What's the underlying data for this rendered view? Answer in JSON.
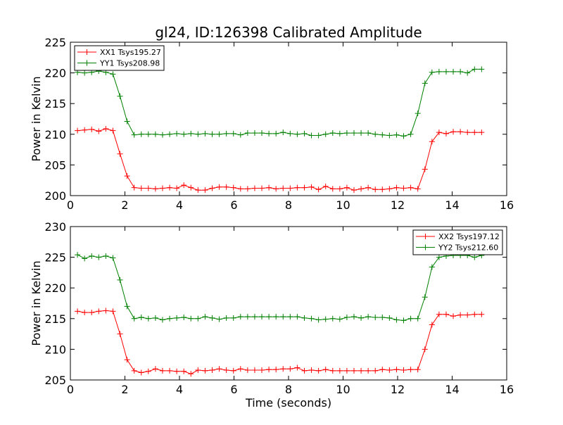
{
  "title": "gl24, ID:126398 Calibrated Amplitude",
  "colors": {
    "red": "#ff0000",
    "green": "#008000"
  },
  "chart_data": [
    {
      "type": "line",
      "title": "gl24, ID:126398 Calibrated Amplitude",
      "xlabel": "",
      "ylabel": "Power in Kelvin",
      "xlim": [
        0,
        16
      ],
      "ylim": [
        200,
        225
      ],
      "xticks": [
        "0",
        "2",
        "4",
        "6",
        "8",
        "10",
        "12",
        "14",
        "16"
      ],
      "yticks": [
        "200",
        "205",
        "210",
        "215",
        "220",
        "225"
      ],
      "legend_position": "top-left",
      "grid": false,
      "series": [
        {
          "name": "XX1 Tsys195.27",
          "color": "#ff0000",
          "x": [
            0.26,
            0.52,
            0.78,
            1.04,
            1.3,
            1.56,
            1.82,
            2.08,
            2.34,
            2.6,
            2.86,
            3.12,
            3.38,
            3.64,
            3.9,
            4.16,
            4.42,
            4.68,
            4.94,
            5.2,
            5.46,
            5.72,
            5.98,
            6.24,
            6.5,
            6.76,
            7.02,
            7.28,
            7.54,
            7.8,
            8.06,
            8.32,
            8.58,
            8.84,
            9.1,
            9.36,
            9.62,
            9.88,
            10.14,
            10.4,
            10.66,
            10.92,
            11.18,
            11.44,
            11.7,
            11.96,
            12.22,
            12.48,
            12.74,
            13.0,
            13.26,
            13.52,
            13.78,
            14.04,
            14.3,
            14.56,
            14.82,
            15.08
          ],
          "y": [
            210.6,
            210.7,
            210.8,
            210.5,
            210.9,
            210.6,
            206.8,
            203.2,
            201.3,
            201.2,
            201.2,
            201.1,
            201.2,
            201.3,
            201.2,
            201.7,
            201.3,
            200.9,
            200.9,
            201.2,
            201.4,
            201.4,
            201.3,
            201.1,
            201.1,
            201.2,
            201.2,
            201.3,
            201.1,
            201.2,
            201.2,
            201.3,
            201.3,
            201.4,
            201.0,
            201.5,
            201.1,
            201.1,
            201.3,
            200.9,
            201.1,
            201.3,
            201.0,
            201.0,
            201.1,
            201.3,
            201.2,
            201.3,
            201.1,
            204.3,
            208.8,
            210.3,
            210.1,
            210.4,
            210.4,
            210.3,
            210.3,
            210.3
          ]
        },
        {
          "name": "YY1 Tsys208.98",
          "color": "#008000",
          "x": [
            0.26,
            0.52,
            0.78,
            1.04,
            1.3,
            1.56,
            1.82,
            2.08,
            2.34,
            2.6,
            2.86,
            3.12,
            3.38,
            3.64,
            3.9,
            4.16,
            4.42,
            4.68,
            4.94,
            5.2,
            5.46,
            5.72,
            5.98,
            6.24,
            6.5,
            6.76,
            7.02,
            7.28,
            7.54,
            7.8,
            8.06,
            8.32,
            8.58,
            8.84,
            9.1,
            9.36,
            9.62,
            9.88,
            10.14,
            10.4,
            10.66,
            10.92,
            11.18,
            11.44,
            11.7,
            11.96,
            12.22,
            12.48,
            12.74,
            13.0,
            13.26,
            13.52,
            13.78,
            14.04,
            14.3,
            14.56,
            14.82,
            15.08
          ],
          "y": [
            220.1,
            220.0,
            220.1,
            220.3,
            220.1,
            219.8,
            216.2,
            212.1,
            209.9,
            210.0,
            210.0,
            210.0,
            209.9,
            210.0,
            210.1,
            210.0,
            210.1,
            210.0,
            210.1,
            210.0,
            210.0,
            210.1,
            210.1,
            209.9,
            210.2,
            210.2,
            210.2,
            210.1,
            210.1,
            210.3,
            210.1,
            210.0,
            210.1,
            209.8,
            209.8,
            210.0,
            210.2,
            210.1,
            210.2,
            210.2,
            210.2,
            210.2,
            210.0,
            209.9,
            209.8,
            209.9,
            209.7,
            210.0,
            213.4,
            218.3,
            220.1,
            220.2,
            220.2,
            220.2,
            220.2,
            220.0,
            220.6,
            220.6
          ]
        }
      ]
    },
    {
      "type": "line",
      "title": "",
      "xlabel": "Time (seconds)",
      "ylabel": "Power in Kelvin",
      "xlim": [
        0,
        16
      ],
      "ylim": [
        205,
        230
      ],
      "xticks": [
        "0",
        "2",
        "4",
        "6",
        "8",
        "10",
        "12",
        "14",
        "16"
      ],
      "yticks": [
        "205",
        "210",
        "215",
        "220",
        "225",
        "230"
      ],
      "legend_position": "top-right",
      "grid": false,
      "series": [
        {
          "name": "XX2 Tsys197.12",
          "color": "#ff0000",
          "x": [
            0.26,
            0.52,
            0.78,
            1.04,
            1.3,
            1.56,
            1.82,
            2.08,
            2.34,
            2.6,
            2.86,
            3.12,
            3.38,
            3.64,
            3.9,
            4.16,
            4.42,
            4.68,
            4.94,
            5.2,
            5.46,
            5.72,
            5.98,
            6.24,
            6.5,
            6.76,
            7.02,
            7.28,
            7.54,
            7.8,
            8.06,
            8.32,
            8.58,
            8.84,
            9.1,
            9.36,
            9.62,
            9.88,
            10.14,
            10.4,
            10.66,
            10.92,
            11.18,
            11.44,
            11.7,
            11.96,
            12.22,
            12.48,
            12.74,
            13.0,
            13.26,
            13.52,
            13.78,
            14.04,
            14.3,
            14.56,
            14.82,
            15.08
          ],
          "y": [
            216.2,
            216.0,
            216.0,
            216.2,
            216.3,
            216.2,
            212.5,
            208.3,
            206.5,
            206.2,
            206.4,
            206.8,
            206.5,
            206.5,
            206.4,
            206.4,
            206.0,
            206.6,
            206.5,
            206.6,
            206.8,
            206.6,
            206.5,
            206.8,
            206.6,
            206.6,
            206.6,
            206.7,
            206.7,
            206.8,
            206.8,
            207.0,
            206.5,
            206.6,
            206.5,
            206.7,
            206.5,
            206.5,
            206.5,
            206.5,
            206.5,
            206.5,
            206.5,
            206.7,
            206.6,
            206.7,
            206.6,
            206.7,
            206.7,
            210.0,
            214.0,
            215.7,
            215.7,
            215.4,
            215.6,
            215.6,
            215.7,
            215.7
          ]
        },
        {
          "name": "YY2 Tsys212.60",
          "color": "#008000",
          "x": [
            0.26,
            0.52,
            0.78,
            1.04,
            1.3,
            1.56,
            1.82,
            2.08,
            2.34,
            2.6,
            2.86,
            3.12,
            3.38,
            3.64,
            3.9,
            4.16,
            4.42,
            4.68,
            4.94,
            5.2,
            5.46,
            5.72,
            5.98,
            6.24,
            6.5,
            6.76,
            7.02,
            7.28,
            7.54,
            7.8,
            8.06,
            8.32,
            8.58,
            8.84,
            9.1,
            9.36,
            9.62,
            9.88,
            10.14,
            10.4,
            10.66,
            10.92,
            11.18,
            11.44,
            11.7,
            11.96,
            12.22,
            12.48,
            12.74,
            13.0,
            13.26,
            13.52,
            13.78,
            14.04,
            14.3,
            14.56,
            14.82,
            15.08
          ],
          "y": [
            225.4,
            224.8,
            225.2,
            225.0,
            225.2,
            224.9,
            221.3,
            217.0,
            215.0,
            215.2,
            215.0,
            215.1,
            214.8,
            215.0,
            215.1,
            215.2,
            215.0,
            215.0,
            215.3,
            215.1,
            214.9,
            215.1,
            215.1,
            215.3,
            215.3,
            215.3,
            215.3,
            215.3,
            215.3,
            215.3,
            215.3,
            215.3,
            215.1,
            215.0,
            214.8,
            214.9,
            215.0,
            214.9,
            215.2,
            215.3,
            215.1,
            215.3,
            215.2,
            215.2,
            215.1,
            214.8,
            214.7,
            215.0,
            215.0,
            218.5,
            223.4,
            225.0,
            225.2,
            225.3,
            225.3,
            225.3,
            225.0,
            225.3
          ]
        }
      ]
    }
  ]
}
